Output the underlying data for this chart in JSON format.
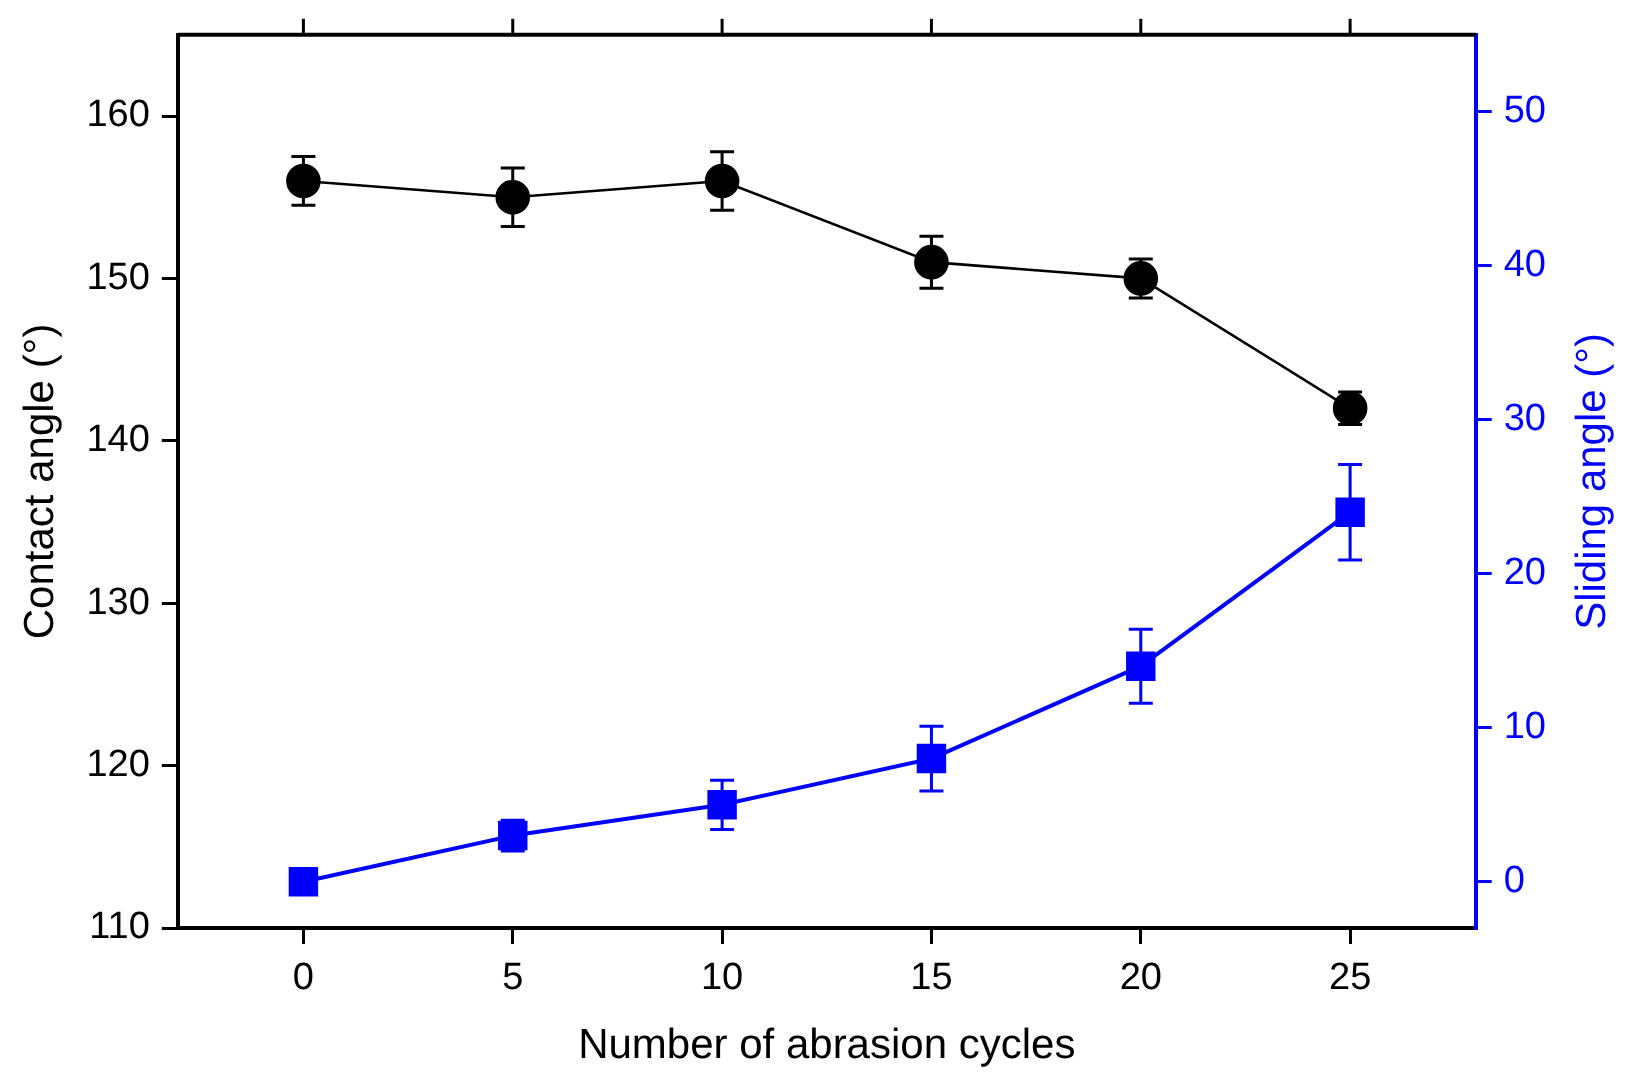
{
  "chart_data": {
    "type": "line",
    "xlabel": "Number of abrasion cycles",
    "ylabel": "Contact angle (°)",
    "y2label": "Sliding angle (°)",
    "x": [
      0,
      5,
      10,
      15,
      20,
      25
    ],
    "series": [
      {
        "color": "#000000",
        "marker": "circle",
        "values": [
          156,
          155,
          156,
          151,
          150,
          142
        ],
        "errors": [
          1.5,
          1.8,
          1.8,
          1.6,
          1.2,
          1.0
        ]
      },
      {
        "color": "#0000ff",
        "marker": "square",
        "axis": "y2",
        "values": [
          0,
          3,
          5,
          8,
          14,
          24
        ],
        "errors": [
          null,
          1.0,
          1.6,
          2.1,
          2.4,
          3.1
        ]
      }
    ],
    "xlim": [
      -3,
      28
    ],
    "xticks": [
      0,
      5,
      10,
      15,
      20,
      25
    ],
    "ylim": [
      110,
      165
    ],
    "yticks": [
      110,
      120,
      130,
      140,
      150,
      160
    ],
    "y2lim": [
      -3,
      55
    ],
    "y2ticks": [
      0,
      10,
      20,
      30,
      40,
      50
    ],
    "grid": false,
    "legend": false
  }
}
